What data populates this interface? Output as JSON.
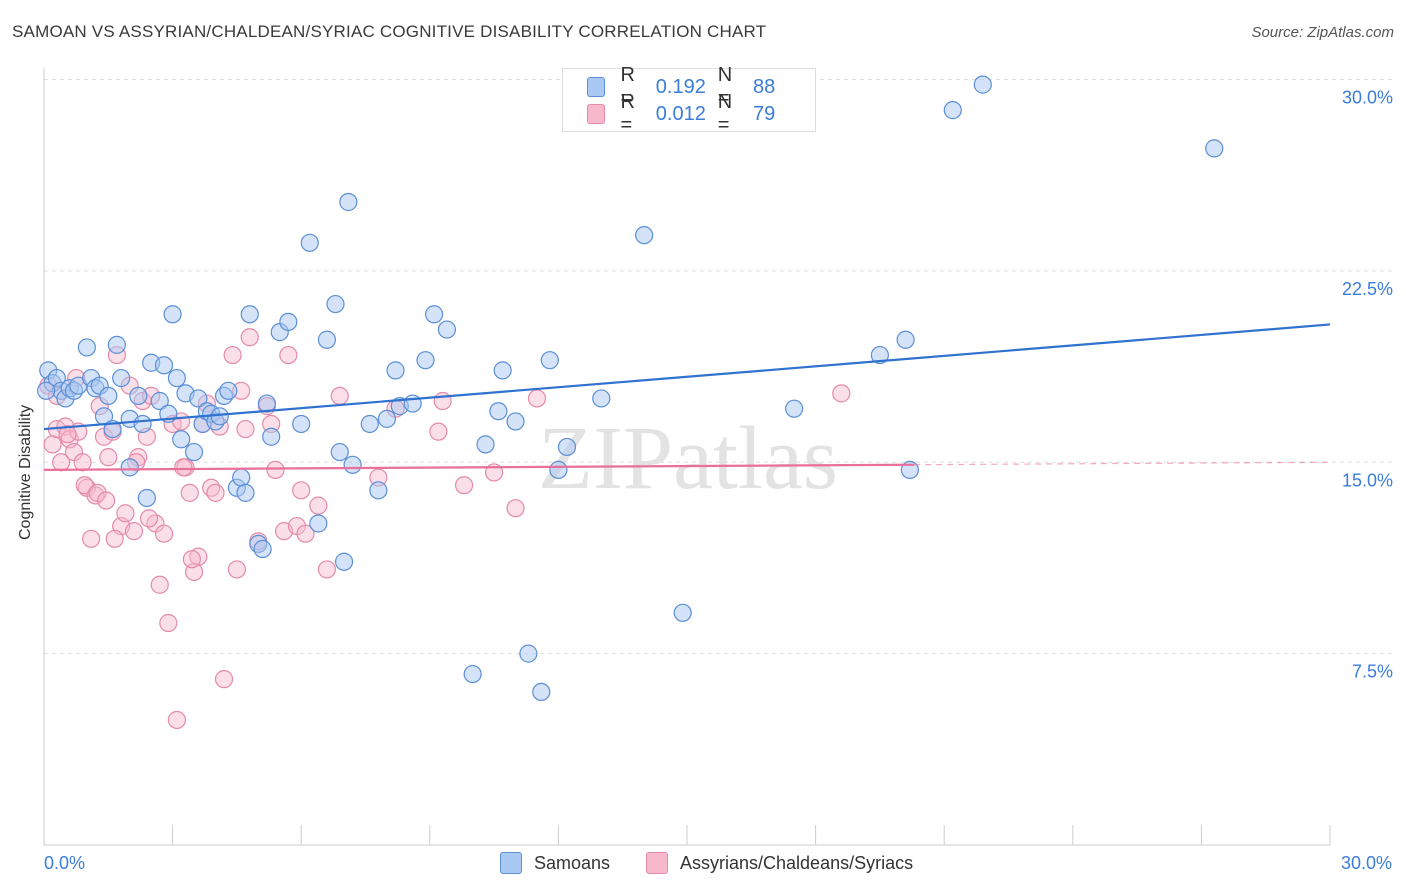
{
  "title": "SAMOAN VS ASSYRIAN/CHALDEAN/SYRIAC COGNITIVE DISABILITY CORRELATION CHART",
  "source": "Source: ZipAtlas.com",
  "watermark": "ZIPatlas",
  "legend": {
    "r_label": "R =",
    "n_label": "N =",
    "series1": {
      "r": "0.192",
      "n": "88"
    },
    "series2": {
      "r": "0.012",
      "n": "79"
    }
  },
  "colors": {
    "blue_fill": "#a9c8f2",
    "blue_stroke": "#5b8fd6",
    "blue_line": "#2f72d0",
    "pink_fill": "#f7b8cc",
    "pink_stroke": "#e58aa8",
    "pink_line": "#e8709a",
    "axis_text": "#3b7dd8",
    "grid": "#dddddd"
  },
  "chart_data": {
    "type": "scatter",
    "title": "SAMOAN VS ASSYRIAN/CHALDEAN/SYRIAC COGNITIVE DISABILITY CORRELATION CHART",
    "xlabel": "",
    "ylabel": "Cognitive Disability",
    "xlim": [
      0,
      30
    ],
    "ylim": [
      0,
      31
    ],
    "x_tick_labels": [
      "0.0%",
      "30.0%"
    ],
    "y_ticks": [
      7.5,
      15.0,
      22.5,
      30.0
    ],
    "y_tick_labels": [
      "7.5%",
      "15.0%",
      "22.5%",
      "30.0%"
    ],
    "grid": "horizontal dashed",
    "series": [
      {
        "name": "Samoans",
        "trend": {
          "x0": 0,
          "y0": 16.3,
          "x1": 30,
          "y1": 20.4,
          "dashed_from": null
        },
        "points": [
          [
            0.1,
            18.6
          ],
          [
            0.2,
            18.1
          ],
          [
            0.3,
            18.3
          ],
          [
            0.4,
            17.8
          ],
          [
            0.5,
            17.5
          ],
          [
            0.6,
            17.9
          ],
          [
            0.7,
            17.8
          ],
          [
            0.8,
            18.0
          ],
          [
            1.0,
            19.5
          ],
          [
            1.1,
            18.3
          ],
          [
            1.2,
            17.9
          ],
          [
            1.3,
            18.0
          ],
          [
            1.4,
            16.8
          ],
          [
            1.5,
            17.6
          ],
          [
            1.6,
            16.3
          ],
          [
            1.7,
            19.6
          ],
          [
            1.8,
            18.3
          ],
          [
            2.0,
            16.7
          ],
          [
            2.0,
            14.8
          ],
          [
            2.2,
            17.6
          ],
          [
            2.3,
            16.5
          ],
          [
            2.4,
            13.6
          ],
          [
            2.5,
            18.9
          ],
          [
            2.7,
            17.4
          ],
          [
            2.8,
            18.8
          ],
          [
            2.9,
            16.9
          ],
          [
            3.0,
            20.8
          ],
          [
            3.1,
            18.3
          ],
          [
            3.2,
            15.9
          ],
          [
            3.3,
            17.7
          ],
          [
            3.5,
            15.4
          ],
          [
            3.6,
            17.5
          ],
          [
            3.7,
            16.5
          ],
          [
            3.8,
            17.0
          ],
          [
            3.9,
            16.9
          ],
          [
            4.0,
            16.6
          ],
          [
            4.1,
            16.8
          ],
          [
            4.2,
            17.6
          ],
          [
            4.3,
            17.8
          ],
          [
            4.5,
            14.0
          ],
          [
            4.6,
            14.4
          ],
          [
            4.7,
            13.8
          ],
          [
            4.8,
            20.8
          ],
          [
            5.0,
            11.8
          ],
          [
            5.1,
            11.6
          ],
          [
            5.2,
            17.3
          ],
          [
            5.3,
            16.0
          ],
          [
            5.5,
            20.1
          ],
          [
            5.7,
            20.5
          ],
          [
            6.0,
            16.5
          ],
          [
            6.2,
            23.6
          ],
          [
            6.4,
            12.6
          ],
          [
            6.6,
            19.8
          ],
          [
            6.8,
            21.2
          ],
          [
            6.9,
            15.4
          ],
          [
            7.0,
            11.1
          ],
          [
            7.1,
            25.2
          ],
          [
            7.2,
            14.9
          ],
          [
            7.6,
            16.5
          ],
          [
            7.8,
            13.9
          ],
          [
            8.0,
            16.7
          ],
          [
            8.2,
            18.6
          ],
          [
            8.3,
            17.2
          ],
          [
            8.6,
            17.3
          ],
          [
            8.9,
            19.0
          ],
          [
            9.1,
            20.8
          ],
          [
            9.4,
            20.2
          ],
          [
            10.0,
            6.7
          ],
          [
            10.3,
            15.7
          ],
          [
            10.6,
            17.0
          ],
          [
            10.7,
            18.6
          ],
          [
            11.0,
            16.6
          ],
          [
            11.3,
            7.5
          ],
          [
            11.6,
            6.0
          ],
          [
            11.8,
            19.0
          ],
          [
            12.0,
            14.7
          ],
          [
            12.2,
            15.6
          ],
          [
            13.0,
            17.5
          ],
          [
            14.0,
            23.9
          ],
          [
            14.9,
            9.1
          ],
          [
            17.5,
            17.1
          ],
          [
            19.5,
            19.2
          ],
          [
            20.1,
            19.8
          ],
          [
            20.2,
            14.7
          ],
          [
            21.2,
            28.8
          ],
          [
            21.9,
            29.8
          ],
          [
            27.3,
            27.3
          ],
          [
            0.05,
            17.8
          ]
        ]
      },
      {
        "name": "Assyrians/Chaldeans/Syriacs",
        "trend": {
          "x0": 0,
          "y0": 14.7,
          "x1": 30,
          "y1": 15.0,
          "dashed_from": 20.3
        },
        "points": [
          [
            0.1,
            18.0
          ],
          [
            0.2,
            15.7
          ],
          [
            0.3,
            16.3
          ],
          [
            0.4,
            15.0
          ],
          [
            0.5,
            16.4
          ],
          [
            0.6,
            15.9
          ],
          [
            0.7,
            15.4
          ],
          [
            0.8,
            16.2
          ],
          [
            0.9,
            15.0
          ],
          [
            1.0,
            14.0
          ],
          [
            1.1,
            12.0
          ],
          [
            1.2,
            13.7
          ],
          [
            1.3,
            17.2
          ],
          [
            1.4,
            16.0
          ],
          [
            1.5,
            15.2
          ],
          [
            1.6,
            16.2
          ],
          [
            1.7,
            19.2
          ],
          [
            1.8,
            12.5
          ],
          [
            1.9,
            13.0
          ],
          [
            2.0,
            18.0
          ],
          [
            2.1,
            12.3
          ],
          [
            2.2,
            15.2
          ],
          [
            2.3,
            17.4
          ],
          [
            2.4,
            16.0
          ],
          [
            2.5,
            17.6
          ],
          [
            2.6,
            12.6
          ],
          [
            2.7,
            10.2
          ],
          [
            2.8,
            12.2
          ],
          [
            2.9,
            8.7
          ],
          [
            3.0,
            16.5
          ],
          [
            3.1,
            4.9
          ],
          [
            3.2,
            16.6
          ],
          [
            3.3,
            14.8
          ],
          [
            3.4,
            13.8
          ],
          [
            3.5,
            10.7
          ],
          [
            3.6,
            11.3
          ],
          [
            3.7,
            16.5
          ],
          [
            3.8,
            17.3
          ],
          [
            3.9,
            14.0
          ],
          [
            4.0,
            13.8
          ],
          [
            4.1,
            16.4
          ],
          [
            4.2,
            6.5
          ],
          [
            4.4,
            19.2
          ],
          [
            4.5,
            10.8
          ],
          [
            4.6,
            17.8
          ],
          [
            4.7,
            16.3
          ],
          [
            4.8,
            19.9
          ],
          [
            5.0,
            11.9
          ],
          [
            5.2,
            17.2
          ],
          [
            5.3,
            16.5
          ],
          [
            5.4,
            14.7
          ],
          [
            5.6,
            12.3
          ],
          [
            5.7,
            19.2
          ],
          [
            5.9,
            12.5
          ],
          [
            6.0,
            13.9
          ],
          [
            6.1,
            12.2
          ],
          [
            6.4,
            13.3
          ],
          [
            6.6,
            10.8
          ],
          [
            6.9,
            17.6
          ],
          [
            7.8,
            14.4
          ],
          [
            8.2,
            17.1
          ],
          [
            9.2,
            16.2
          ],
          [
            9.3,
            17.4
          ],
          [
            9.8,
            14.1
          ],
          [
            10.5,
            14.6
          ],
          [
            11.0,
            13.2
          ],
          [
            11.5,
            17.5
          ],
          [
            18.6,
            17.7
          ],
          [
            0.3,
            17.6
          ],
          [
            0.55,
            16.1
          ],
          [
            0.75,
            18.3
          ],
          [
            0.95,
            14.1
          ],
          [
            1.25,
            13.8
          ],
          [
            1.45,
            13.5
          ],
          [
            1.65,
            12.0
          ],
          [
            2.15,
            15.0
          ],
          [
            2.45,
            12.8
          ],
          [
            3.25,
            14.8
          ],
          [
            3.45,
            11.2
          ]
        ]
      }
    ]
  },
  "bottom_legend": {
    "series1": "Samoans",
    "series2": "Assyrians/Chaldeans/Syriacs"
  }
}
